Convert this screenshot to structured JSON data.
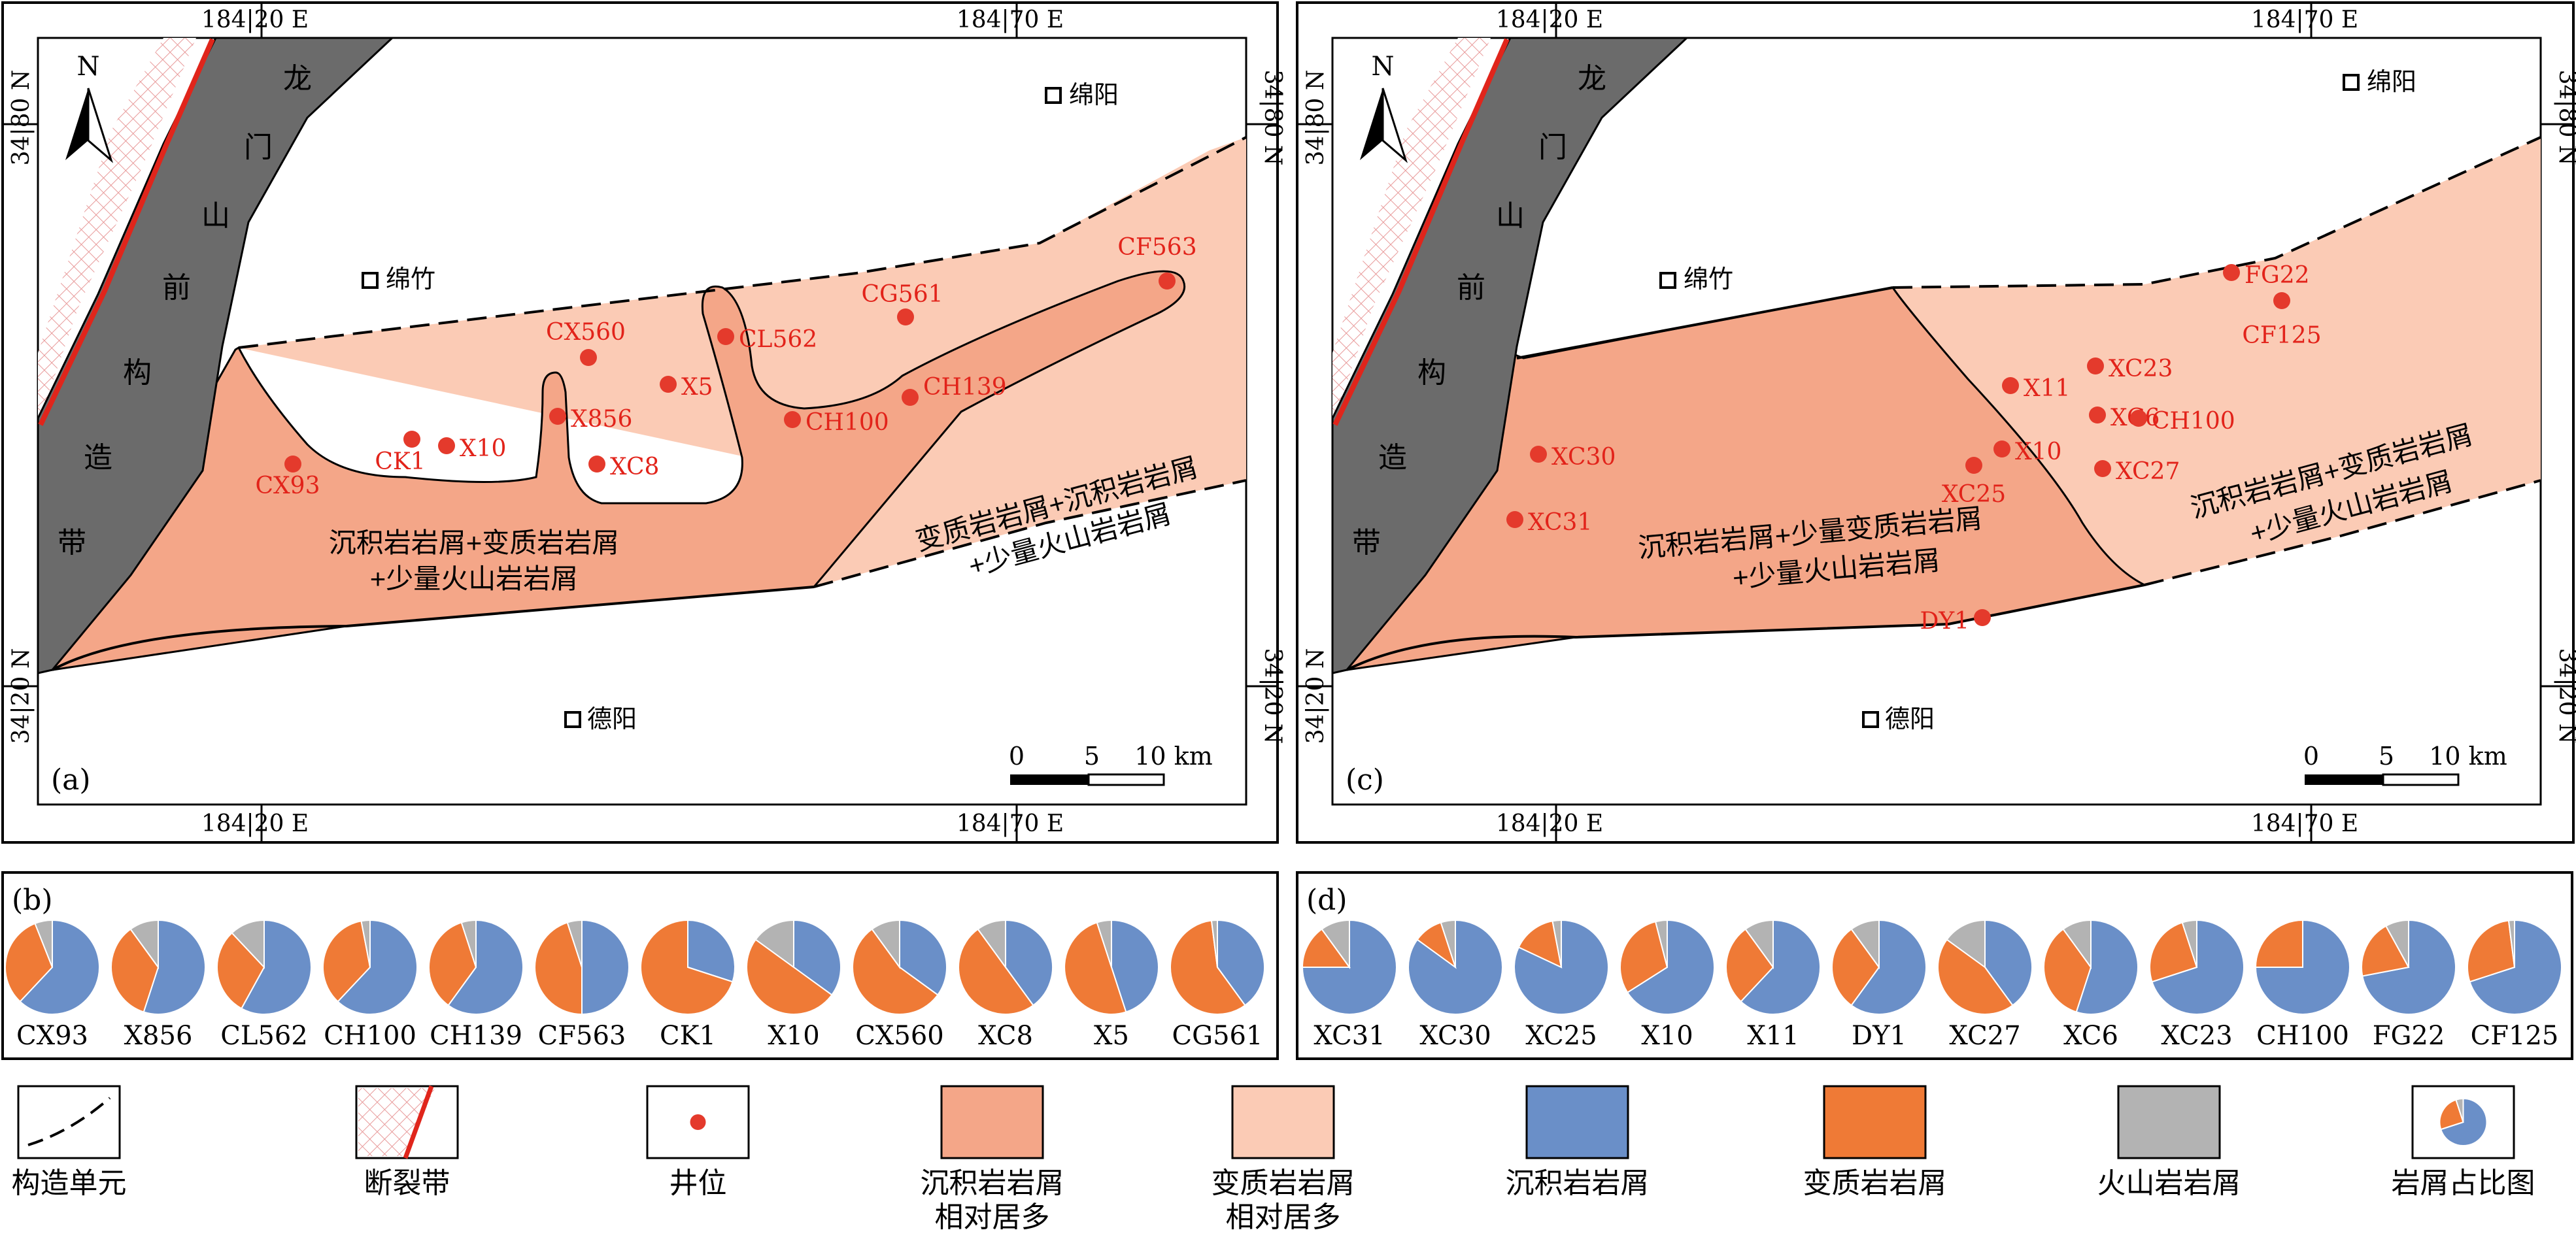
{
  "maps": [
    {
      "panel_label": "(a)",
      "north_label": "N",
      "grid": {
        "top_left": "184|20 E",
        "top_right": "184|70 E",
        "bottom_left": "184|20 E",
        "bottom_right": "184|70 E",
        "left_top": "34|80 N",
        "left_bottom": "34|20 N",
        "right_top": "34|80 N",
        "right_bottom": "34|20 N"
      },
      "fault_zone_name": [
        "龙",
        "门",
        "山",
        "前",
        "构",
        "造",
        "带"
      ],
      "cities": [
        {
          "name": "绵阳"
        },
        {
          "name": "绵竹"
        },
        {
          "name": "德阳"
        }
      ],
      "zone_labels": [
        "沉积岩岩屑+变质岩岩屑",
        "+少量火山岩岩屑",
        "变质岩岩屑+沉积岩岩屑",
        "+少量火山岩岩屑"
      ],
      "wells": [
        {
          "name": "CX93"
        },
        {
          "name": "CK1"
        },
        {
          "name": "X10"
        },
        {
          "name": "CX560"
        },
        {
          "name": "X856"
        },
        {
          "name": "XC8"
        },
        {
          "name": "X5"
        },
        {
          "name": "CL562"
        },
        {
          "name": "CH100"
        },
        {
          "name": "CG561"
        },
        {
          "name": "CH139"
        },
        {
          "name": "CF563"
        }
      ],
      "scale_bar": {
        "labels": [
          "0",
          "5",
          "10 km"
        ]
      }
    },
    {
      "panel_label": "(c)",
      "north_label": "N",
      "grid": {
        "top_left": "184|20 E",
        "top_right": "184|70 E",
        "bottom_left": "184|20 E",
        "bottom_right": "184|70 E",
        "left_top": "34|80 N",
        "left_bottom": "34|20 N",
        "right_top": "34|80 N",
        "right_bottom": "34|20 N"
      },
      "fault_zone_name": [
        "龙",
        "门",
        "山",
        "前",
        "构",
        "造",
        "带"
      ],
      "cities": [
        {
          "name": "绵阳"
        },
        {
          "name": "绵竹"
        },
        {
          "name": "德阳"
        }
      ],
      "zone_labels": [
        "沉积岩岩屑+少量变质岩岩屑",
        "+少量火山岩岩屑",
        "沉积岩岩屑+变质岩岩屑",
        "+少量火山岩岩屑"
      ],
      "wells": [
        {
          "name": "X11"
        },
        {
          "name": "XC30"
        },
        {
          "name": "X10"
        },
        {
          "name": "XC25"
        },
        {
          "name": "XC31"
        },
        {
          "name": "DY1"
        },
        {
          "name": "XC23"
        },
        {
          "name": "XC6"
        },
        {
          "name": "CH100"
        },
        {
          "name": "XC27"
        },
        {
          "name": "FG22"
        },
        {
          "name": "CF125"
        }
      ],
      "scale_bar": {
        "labels": [
          "0",
          "5",
          "10 km"
        ]
      }
    }
  ],
  "pie_panels": [
    {
      "panel_label": "(b)",
      "pies": [
        {
          "name": "CX93",
          "sed": 0.62,
          "met": 0.32,
          "vol": 0.06
        },
        {
          "name": "X856",
          "sed": 0.55,
          "met": 0.35,
          "vol": 0.1
        },
        {
          "name": "CL562",
          "sed": 0.58,
          "met": 0.3,
          "vol": 0.12
        },
        {
          "name": "CH100",
          "sed": 0.62,
          "met": 0.35,
          "vol": 0.03
        },
        {
          "name": "CH139",
          "sed": 0.6,
          "met": 0.35,
          "vol": 0.05
        },
        {
          "name": "CF563",
          "sed": 0.5,
          "met": 0.45,
          "vol": 0.05
        },
        {
          "name": "CK1",
          "sed": 0.3,
          "met": 0.7,
          "vol": 0.0
        },
        {
          "name": "X10",
          "sed": 0.35,
          "met": 0.5,
          "vol": 0.15
        },
        {
          "name": "CX560",
          "sed": 0.35,
          "met": 0.55,
          "vol": 0.1
        },
        {
          "name": "XC8",
          "sed": 0.4,
          "met": 0.5,
          "vol": 0.1
        },
        {
          "name": "X5",
          "sed": 0.45,
          "met": 0.5,
          "vol": 0.05
        },
        {
          "name": "CG561",
          "sed": 0.4,
          "met": 0.58,
          "vol": 0.02
        }
      ]
    },
    {
      "panel_label": "(d)",
      "pies": [
        {
          "name": "XC31",
          "sed": 0.75,
          "met": 0.15,
          "vol": 0.1
        },
        {
          "name": "XC30",
          "sed": 0.85,
          "met": 0.1,
          "vol": 0.05
        },
        {
          "name": "XC25",
          "sed": 0.82,
          "met": 0.15,
          "vol": 0.03
        },
        {
          "name": "X10",
          "sed": 0.66,
          "met": 0.3,
          "vol": 0.04
        },
        {
          "name": "X11",
          "sed": 0.62,
          "met": 0.28,
          "vol": 0.1
        },
        {
          "name": "DY1",
          "sed": 0.6,
          "met": 0.3,
          "vol": 0.1
        },
        {
          "name": "XC27",
          "sed": 0.4,
          "met": 0.45,
          "vol": 0.15
        },
        {
          "name": "XC6",
          "sed": 0.55,
          "met": 0.35,
          "vol": 0.1
        },
        {
          "name": "XC23",
          "sed": 0.7,
          "met": 0.25,
          "vol": 0.05
        },
        {
          "name": "CH100",
          "sed": 0.75,
          "met": 0.25,
          "vol": 0.0
        },
        {
          "name": "FG22",
          "sed": 0.72,
          "met": 0.2,
          "vol": 0.08
        },
        {
          "name": "CF125",
          "sed": 0.7,
          "met": 0.28,
          "vol": 0.02
        }
      ]
    }
  ],
  "legend": [
    {
      "label": [
        "构造单元"
      ]
    },
    {
      "label": [
        "断裂带"
      ]
    },
    {
      "label": [
        "井位"
      ]
    },
    {
      "label": [
        "沉积岩岩屑",
        "相对居多"
      ]
    },
    {
      "label": [
        "变质岩岩屑",
        "相对居多"
      ]
    },
    {
      "label": [
        "沉积岩岩屑"
      ]
    },
    {
      "label": [
        "变质岩岩屑"
      ]
    },
    {
      "label": [
        "火山岩岩屑"
      ]
    },
    {
      "label": [
        "岩屑占比图"
      ]
    }
  ],
  "colors": {
    "fault_belt": "#6b6b6b",
    "sed_dominant": "#f4a688",
    "met_dominant": "#fbcbb5",
    "well": "#e43a2c",
    "well_label": "#e2231a",
    "fault_line": "#e0251b",
    "sed_pie": "#6a8fc8",
    "met_pie": "#ef7a36",
    "vol_pie": "#b3b3b3"
  }
}
